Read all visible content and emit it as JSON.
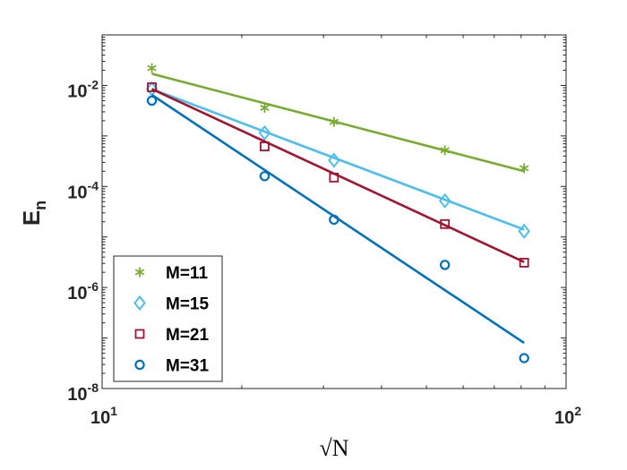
{
  "chart_data": {
    "type": "scatter",
    "xscale": "log",
    "yscale": "log",
    "xlim": [
      10,
      100
    ],
    "ylim": [
      1e-08,
      0.1
    ],
    "xlabel": "√N",
    "ylabel": {
      "base": "E",
      "subscript": "n"
    },
    "x_ticks": [
      {
        "value": 10,
        "base": "10",
        "exp": "1"
      },
      {
        "value": 100,
        "base": "10",
        "exp": "2"
      }
    ],
    "y_ticks": [
      {
        "value": 0.01,
        "base": "10",
        "exp": "-2"
      },
      {
        "value": 0.0001,
        "base": "10",
        "exp": "-4"
      },
      {
        "value": 1e-06,
        "base": "10",
        "exp": "-6"
      },
      {
        "value": 1e-08,
        "base": "10",
        "exp": "-8"
      }
    ],
    "legend_position": "bottom-left",
    "series": [
      {
        "name": "M=11",
        "marker": "asterisk",
        "color": "#77ac30",
        "points": [
          [
            12.8,
            0.022
          ],
          [
            22.4,
            0.0036
          ],
          [
            31.6,
            0.0019
          ],
          [
            54.8,
            0.00052
          ],
          [
            81.2,
            0.00023
          ]
        ],
        "fit": [
          [
            12.8,
            0.017
          ],
          [
            81.2,
            0.0002
          ]
        ]
      },
      {
        "name": "M=15",
        "marker": "diamond",
        "color": "#4dbeee",
        "points": [
          [
            12.8,
            0.0085
          ],
          [
            22.4,
            0.00115
          ],
          [
            31.6,
            0.00033
          ],
          [
            54.8,
            5.2e-05
          ],
          [
            81.2,
            1.3e-05
          ]
        ],
        "fit": [
          [
            12.8,
            0.0085
          ],
          [
            81.2,
            1.4e-05
          ]
        ]
      },
      {
        "name": "M=21",
        "marker": "square",
        "color": "#a2142f",
        "points": [
          [
            12.8,
            0.0092
          ],
          [
            22.4,
            0.00062
          ],
          [
            31.6,
            0.00015
          ],
          [
            54.8,
            1.8e-05
          ],
          [
            81.2,
            3.1e-06
          ]
        ],
        "fit": [
          [
            12.8,
            0.0085
          ],
          [
            81.2,
            3.2e-06
          ]
        ]
      },
      {
        "name": "M=31",
        "marker": "circle",
        "color": "#0072bd",
        "points": [
          [
            12.8,
            0.005
          ],
          [
            22.4,
            0.00016
          ],
          [
            31.6,
            2.2e-05
          ],
          [
            54.8,
            2.8e-06
          ],
          [
            81.2,
            4e-08
          ]
        ],
        "fit": [
          [
            12.8,
            0.0065
          ],
          [
            81.2,
            8e-08
          ]
        ]
      }
    ]
  }
}
